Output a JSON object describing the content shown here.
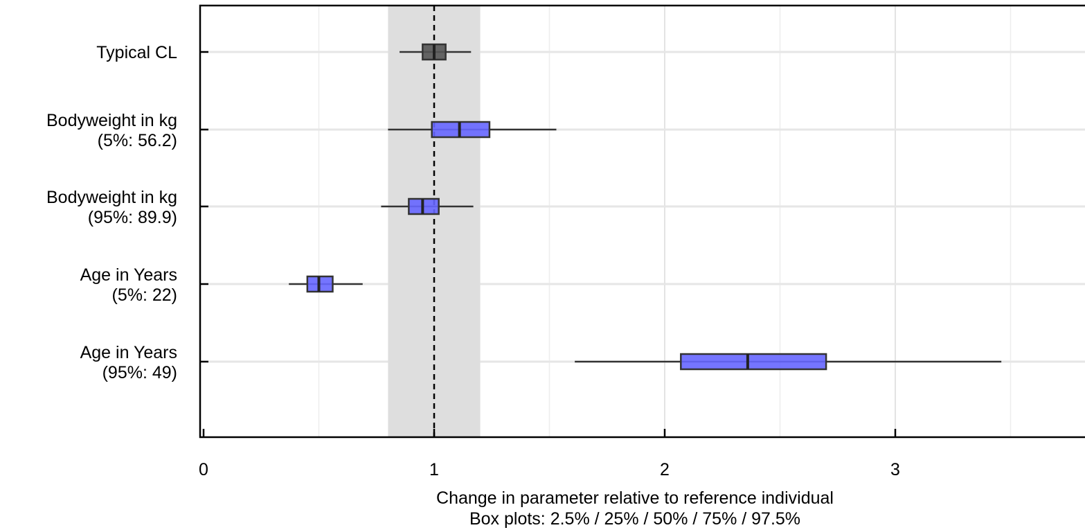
{
  "chart_data": {
    "type": "boxplot",
    "categories": [
      {
        "line1": "Typical CL",
        "line2": ""
      },
      {
        "line1": "Bodyweight in kg",
        "line2": "(5%: 56.2)"
      },
      {
        "line1": "Bodyweight in kg",
        "line2": "(95%: 89.9)"
      },
      {
        "line1": "Age in Years",
        "line2": "(5%: 22)"
      },
      {
        "line1": "Age in Years",
        "line2": "(95%: 49)"
      }
    ],
    "boxes": [
      {
        "p2_5": 0.85,
        "p25": 0.95,
        "p50": 1.0,
        "p75": 1.05,
        "p97_5": 1.16,
        "color": "#555555"
      },
      {
        "p2_5": 0.8,
        "p25": 0.99,
        "p50": 1.11,
        "p75": 1.24,
        "p97_5": 1.53,
        "color": "#6666ff"
      },
      {
        "p2_5": 0.77,
        "p25": 0.89,
        "p50": 0.95,
        "p75": 1.02,
        "p97_5": 1.17,
        "color": "#6666ff"
      },
      {
        "p2_5": 0.37,
        "p25": 0.45,
        "p50": 0.5,
        "p75": 0.56,
        "p97_5": 0.69,
        "color": "#6666ff"
      },
      {
        "p2_5": 1.61,
        "p25": 2.07,
        "p50": 2.36,
        "p75": 2.7,
        "p97_5": 3.46,
        "color": "#6666ff"
      }
    ],
    "reference_line": 1,
    "reference_band": [
      0.8,
      1.2
    ],
    "xlim": [
      0,
      3.8
    ],
    "xticks": [
      "0",
      "1",
      "2",
      "3"
    ],
    "xlabel_line1": "Change in parameter relative to reference individual",
    "xlabel_line2": "Box plots: 2.5% / 25% / 50% / 75% / 97.5%",
    "grid": true
  }
}
